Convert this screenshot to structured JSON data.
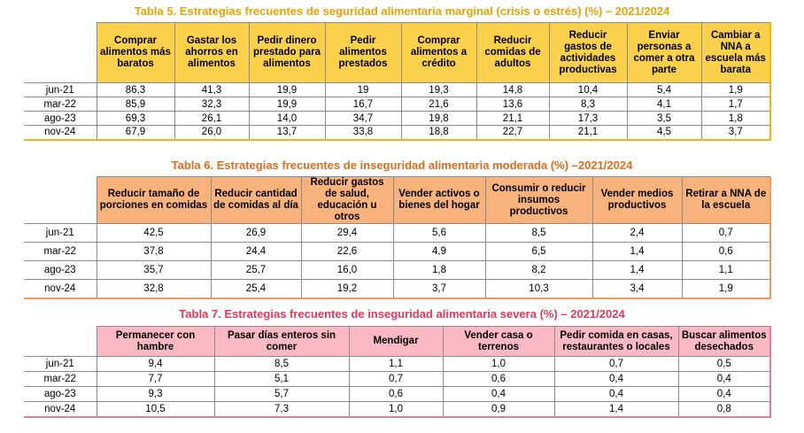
{
  "t5": {
    "title": "Tabla 5. Estrategias frecuentes de seguridad alimentaria marginal (crisis o estrés) (%) – 2021/2024",
    "headers": [
      "Comprar alimentos más baratos",
      "Gastar los ahorros en alimentos",
      "Pedir dinero prestado para alimentos",
      "Pedir alimentos prestados",
      "Comprar alimentos a crédito",
      "Reducir comidas de adultos",
      "Reducir gastos de actividades productivas",
      "Enviar personas a comer a otra parte",
      "Cambiar a NNA a escuela más barata"
    ],
    "rows": [
      {
        "label": "jun-21",
        "values": [
          "86,3",
          "41,3",
          "19,9",
          "19",
          "19,3",
          "14,8",
          "10,4",
          "5,4",
          "1,9"
        ]
      },
      {
        "label": "mar-22",
        "values": [
          "85,9",
          "32,3",
          "19,9",
          "16,7",
          "21,6",
          "13,6",
          "8,3",
          "4,1",
          "1,7"
        ]
      },
      {
        "label": "ago-23",
        "values": [
          "69,3",
          "26,1",
          "14,0",
          "34,7",
          "19,8",
          "21,1",
          "17,3",
          "3,5",
          "1,8"
        ]
      },
      {
        "label": "nov-24",
        "values": [
          "67,9",
          "26,0",
          "13,7",
          "33,8",
          "18,8",
          "22,7",
          "21,1",
          "4,5",
          "3,7"
        ]
      }
    ]
  },
  "t6": {
    "title": "Tabla 6. Estrategias frecuentes de inseguridad alimentaria moderada (%) –2021/2024",
    "headers": [
      "Reducir tamaño de porciones en comidas",
      "Reducir cantidad de comidas al día",
      "Reducir gastos de salud, educación u otros",
      "Vender activos o bienes del hogar",
      "Consumir o reducir insumos productivos",
      "Vender medios productivos",
      "Retirar a NNA de la escuela"
    ],
    "rows": [
      {
        "label": "jun-21",
        "values": [
          "42,5",
          "26,9",
          "29,4",
          "5,6",
          "8,5",
          "2,4",
          "0,7"
        ]
      },
      {
        "label": "mar-22",
        "values": [
          "37,8",
          "24,4",
          "22,6",
          "4,9",
          "6,5",
          "1,4",
          "0,6"
        ]
      },
      {
        "label": "ago-23",
        "values": [
          "35,7",
          "25,7",
          "16,0",
          "1,8",
          "8,2",
          "1,4",
          "1,1"
        ]
      },
      {
        "label": "nov-24",
        "values": [
          "32,8",
          "25,4",
          "19,2",
          "3,7",
          "10,3",
          "3,4",
          "1,9"
        ]
      }
    ]
  },
  "t7": {
    "title": "Tabla 7. Estrategias frecuentes de inseguridad alimentaria severa (%) – 2021/2024",
    "headers": [
      "Permanecer con hambre",
      "Pasar días enteros sin comer",
      "Mendigar",
      "Vender casa o terrenos",
      "Pedir comida en casas, restaurantes o locales",
      "Buscar alimentos desechados"
    ],
    "rows": [
      {
        "label": "jun-21",
        "values": [
          "9,4",
          "8,5",
          "1,1",
          "1,0",
          "0,7",
          "0,5"
        ]
      },
      {
        "label": "mar-22",
        "values": [
          "7,7",
          "5,1",
          "0,7",
          "0,6",
          "0,4",
          "0,4"
        ]
      },
      {
        "label": "ago-23",
        "values": [
          "9,3",
          "5,7",
          "0,6",
          "0,4",
          "0,4",
          "0,4"
        ]
      },
      {
        "label": "nov-24",
        "values": [
          "10,5",
          "7,3",
          "1,0",
          "0,9",
          "1,4",
          "0,8"
        ]
      }
    ]
  }
}
